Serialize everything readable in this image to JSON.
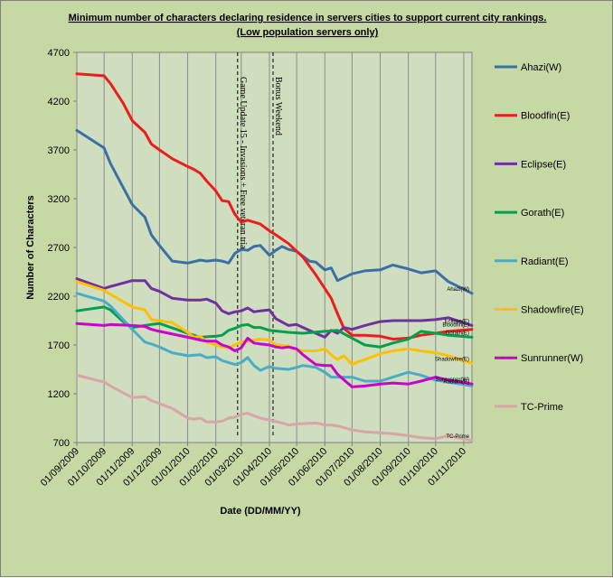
{
  "chart_data": {
    "type": "line",
    "title_line1": "Minimum number of characters  declaring  residence  in servers cities to support current city rankings.",
    "title_line2": "(Low population  servers only)",
    "xlabel": "Date (DD/MM/YY)",
    "ylabel": "Number of Characters",
    "ylim": [
      700,
      4700
    ],
    "yticks": [
      700,
      1200,
      1700,
      2200,
      2700,
      3200,
      3700,
      4200,
      4700
    ],
    "xlim": [
      "2009-09-01",
      "2010-11-10"
    ],
    "xticks": [
      "01/09/2009",
      "01/10/2009",
      "01/11/2009",
      "01/12/2009",
      "01/01/2010",
      "01/02/2010",
      "01/03/2010",
      "01/04/2010",
      "01/05/2010",
      "01/06/2010",
      "01/07/2010",
      "01/08/2010",
      "01/09/2010",
      "01/10/2010",
      "01/11/2010"
    ],
    "grid": "vertical",
    "legend": "right",
    "annotations": [
      {
        "text": "Game Update 15 - Invasions + Free veteran trial",
        "date": "2010-02-25"
      },
      {
        "text": "Bonus Weekend",
        "date": "2010-04-05"
      }
    ],
    "series": [
      {
        "name": "Ahazi(W)",
        "end_label": "Ahazi(W)",
        "color": "#3d6fa7",
        "x": [
          "2009-09-01",
          "2009-10-01",
          "2009-10-08",
          "2009-11-01",
          "2009-11-15",
          "2009-11-22",
          "2009-12-01",
          "2009-12-15",
          "2010-01-01",
          "2010-01-15",
          "2010-01-22",
          "2010-02-01",
          "2010-02-08",
          "2010-02-15",
          "2010-02-22",
          "2010-03-01",
          "2010-03-08",
          "2010-03-15",
          "2010-03-22",
          "2010-04-01",
          "2010-04-08",
          "2010-04-15",
          "2010-04-22",
          "2010-05-01",
          "2010-05-08",
          "2010-05-15",
          "2010-05-22",
          "2010-06-01",
          "2010-06-08",
          "2010-06-15",
          "2010-07-01",
          "2010-07-15",
          "2010-08-01",
          "2010-08-15",
          "2010-09-01",
          "2010-09-15",
          "2010-10-01",
          "2010-10-15",
          "2010-11-10"
        ],
        "y": [
          3900,
          3720,
          3560,
          3140,
          3010,
          2830,
          2720,
          2560,
          2540,
          2570,
          2560,
          2570,
          2560,
          2540,
          2640,
          2680,
          2670,
          2710,
          2720,
          2620,
          2670,
          2710,
          2680,
          2660,
          2610,
          2560,
          2550,
          2470,
          2490,
          2360,
          2430,
          2460,
          2470,
          2520,
          2480,
          2440,
          2460,
          2350,
          2230
        ]
      },
      {
        "name": "Bloodfin(E)",
        "end_label": "Bloodfin(E)",
        "color": "#ee1c1c",
        "x": [
          "2009-09-01",
          "2009-10-01",
          "2009-10-08",
          "2009-10-22",
          "2009-11-01",
          "2009-11-15",
          "2009-11-22",
          "2009-12-01",
          "2009-12-15",
          "2010-01-01",
          "2010-01-08",
          "2010-01-15",
          "2010-01-22",
          "2010-02-01",
          "2010-02-08",
          "2010-02-15",
          "2010-02-22",
          "2010-03-01",
          "2010-03-08",
          "2010-03-22",
          "2010-04-01",
          "2010-04-08",
          "2010-04-22",
          "2010-05-08",
          "2010-05-22",
          "2010-06-08",
          "2010-06-15",
          "2010-06-22",
          "2010-07-01",
          "2010-07-08",
          "2010-07-15",
          "2010-08-01",
          "2010-08-15",
          "2010-09-01",
          "2010-09-15",
          "2010-10-01",
          "2010-10-15",
          "2010-11-10"
        ],
        "y": [
          4480,
          4460,
          4380,
          4180,
          4000,
          3880,
          3760,
          3700,
          3610,
          3530,
          3500,
          3460,
          3380,
          3280,
          3180,
          3170,
          3040,
          2960,
          2980,
          2940,
          2870,
          2830,
          2740,
          2600,
          2420,
          2180,
          2020,
          1870,
          1800,
          1800,
          1800,
          1790,
          1760,
          1770,
          1800,
          1820,
          1840,
          1860
        ]
      },
      {
        "name": "Eclipse(E)",
        "end_label": "Eclipse(E)",
        "color": "#7030a0",
        "x": [
          "2009-09-01",
          "2009-10-01",
          "2009-10-08",
          "2009-11-01",
          "2009-11-15",
          "2009-11-22",
          "2009-12-01",
          "2009-12-15",
          "2010-01-01",
          "2010-01-15",
          "2010-01-22",
          "2010-02-01",
          "2010-02-08",
          "2010-02-15",
          "2010-02-22",
          "2010-03-01",
          "2010-03-08",
          "2010-03-15",
          "2010-03-22",
          "2010-04-01",
          "2010-04-08",
          "2010-04-22",
          "2010-05-01",
          "2010-05-08",
          "2010-05-22",
          "2010-06-01",
          "2010-06-08",
          "2010-06-15",
          "2010-06-22",
          "2010-07-01",
          "2010-07-15",
          "2010-08-01",
          "2010-08-15",
          "2010-09-01",
          "2010-09-15",
          "2010-10-01",
          "2010-10-15",
          "2010-11-10"
        ],
        "y": [
          2380,
          2280,
          2300,
          2360,
          2360,
          2280,
          2250,
          2180,
          2160,
          2160,
          2170,
          2130,
          2050,
          2020,
          2040,
          2050,
          2080,
          2040,
          2050,
          2060,
          1970,
          1900,
          1910,
          1880,
          1820,
          1780,
          1850,
          1820,
          1880,
          1860,
          1900,
          1940,
          1950,
          1950,
          1950,
          1960,
          1980,
          1900
        ]
      },
      {
        "name": "Gorath(E)",
        "end_label": "Gorath(E)",
        "color": "#00a14b",
        "x": [
          "2009-09-01",
          "2009-10-01",
          "2009-10-08",
          "2009-10-22",
          "2009-11-01",
          "2009-11-15",
          "2009-11-22",
          "2009-12-01",
          "2010-01-01",
          "2010-01-15",
          "2010-02-01",
          "2010-02-08",
          "2010-02-15",
          "2010-02-22",
          "2010-03-01",
          "2010-03-08",
          "2010-03-15",
          "2010-03-22",
          "2010-04-01",
          "2010-04-22",
          "2010-05-08",
          "2010-06-01",
          "2010-06-15",
          "2010-07-01",
          "2010-07-15",
          "2010-08-01",
          "2010-08-15",
          "2010-09-01",
          "2010-09-15",
          "2010-10-01",
          "2010-10-15",
          "2010-11-10"
        ],
        "y": [
          2050,
          2090,
          2060,
          1940,
          1880,
          1900,
          1910,
          1920,
          1820,
          1780,
          1790,
          1800,
          1850,
          1870,
          1900,
          1910,
          1880,
          1880,
          1850,
          1830,
          1820,
          1840,
          1850,
          1770,
          1700,
          1680,
          1720,
          1760,
          1840,
          1820,
          1800,
          1780
        ]
      },
      {
        "name": "Radiant(E)",
        "end_label": "Radiant(E)",
        "color": "#4bacc6",
        "x": [
          "2009-09-01",
          "2009-10-01",
          "2009-10-08",
          "2009-11-01",
          "2009-11-15",
          "2009-11-22",
          "2009-12-01",
          "2009-12-15",
          "2010-01-01",
          "2010-01-15",
          "2010-01-22",
          "2010-02-01",
          "2010-02-08",
          "2010-02-15",
          "2010-02-22",
          "2010-03-01",
          "2010-03-08",
          "2010-03-15",
          "2010-03-22",
          "2010-04-01",
          "2010-04-08",
          "2010-04-22",
          "2010-05-01",
          "2010-05-08",
          "2010-05-22",
          "2010-06-01",
          "2010-06-08",
          "2010-06-15",
          "2010-07-01",
          "2010-07-15",
          "2010-08-01",
          "2010-08-15",
          "2010-09-01",
          "2010-09-15",
          "2010-10-01",
          "2010-10-15",
          "2010-11-10"
        ],
        "y": [
          2230,
          2150,
          2100,
          1860,
          1730,
          1710,
          1680,
          1620,
          1590,
          1600,
          1570,
          1580,
          1540,
          1520,
          1500,
          1520,
          1570,
          1490,
          1440,
          1480,
          1460,
          1450,
          1470,
          1490,
          1470,
          1420,
          1370,
          1370,
          1370,
          1330,
          1330,
          1370,
          1420,
          1390,
          1340,
          1320,
          1280
        ]
      },
      {
        "name": "Shadowfire(E)",
        "end_label": "Shadowfire(E)",
        "color": "#ffc000",
        "x": [
          "2009-09-01",
          "2009-10-01",
          "2009-10-08",
          "2009-11-01",
          "2009-11-15",
          "2009-11-22",
          "2009-12-01",
          "2009-12-15",
          "2010-01-01",
          "2010-01-08",
          "2010-01-15",
          "2010-01-22",
          "2010-02-01",
          "2010-02-08",
          "2010-02-15",
          "2010-02-22",
          "2010-03-01",
          "2010-03-08",
          "2010-03-15",
          "2010-03-22",
          "2010-04-01",
          "2010-04-08",
          "2010-04-22",
          "2010-05-01",
          "2010-05-08",
          "2010-05-22",
          "2010-06-01",
          "2010-06-08",
          "2010-06-15",
          "2010-06-22",
          "2010-07-01",
          "2010-07-08",
          "2010-07-15",
          "2010-08-01",
          "2010-08-15",
          "2010-09-01",
          "2010-09-15",
          "2010-10-01",
          "2010-10-15",
          "2010-11-10"
        ],
        "y": [
          2350,
          2260,
          2220,
          2090,
          2060,
          1960,
          1950,
          1930,
          1830,
          1780,
          1790,
          1730,
          1700,
          1680,
          1670,
          1700,
          1730,
          1740,
          1750,
          1760,
          1750,
          1700,
          1690,
          1650,
          1640,
          1640,
          1660,
          1600,
          1550,
          1590,
          1500,
          1530,
          1550,
          1610,
          1640,
          1660,
          1640,
          1620,
          1590,
          1510
        ]
      },
      {
        "name": "Sunrunner(W)",
        "end_label": "Sunrunner(W)",
        "color": "#cc00cc",
        "x": [
          "2009-09-01",
          "2009-10-01",
          "2009-10-08",
          "2009-11-01",
          "2009-11-15",
          "2009-11-22",
          "2009-12-01",
          "2010-01-01",
          "2010-01-15",
          "2010-01-22",
          "2010-02-01",
          "2010-02-08",
          "2010-02-15",
          "2010-02-22",
          "2010-03-01",
          "2010-03-08",
          "2010-03-15",
          "2010-03-22",
          "2010-04-01",
          "2010-04-08",
          "2010-04-15",
          "2010-04-22",
          "2010-05-01",
          "2010-05-08",
          "2010-05-22",
          "2010-06-01",
          "2010-06-08",
          "2010-06-15",
          "2010-07-01",
          "2010-07-15",
          "2010-08-01",
          "2010-08-15",
          "2010-09-01",
          "2010-09-15",
          "2010-10-01",
          "2010-10-15",
          "2010-11-10"
        ],
        "y": [
          1920,
          1900,
          1910,
          1900,
          1890,
          1860,
          1840,
          1780,
          1750,
          1740,
          1740,
          1700,
          1680,
          1640,
          1670,
          1770,
          1720,
          1710,
          1700,
          1680,
          1670,
          1680,
          1660,
          1600,
          1500,
          1490,
          1490,
          1400,
          1270,
          1280,
          1300,
          1310,
          1300,
          1330,
          1370,
          1340,
          1300
        ]
      },
      {
        "name": "TC-Prime",
        "end_label": "TC-Prime",
        "color": "#d9a5a5",
        "x": [
          "2009-09-01",
          "2009-10-01",
          "2009-10-08",
          "2009-11-01",
          "2009-11-15",
          "2009-11-22",
          "2009-12-01",
          "2009-12-15",
          "2010-01-01",
          "2010-01-08",
          "2010-01-15",
          "2010-01-22",
          "2010-02-01",
          "2010-02-08",
          "2010-02-15",
          "2010-02-22",
          "2010-03-01",
          "2010-03-08",
          "2010-03-22",
          "2010-04-01",
          "2010-04-15",
          "2010-04-22",
          "2010-05-01",
          "2010-05-22",
          "2010-06-01",
          "2010-06-08",
          "2010-06-15",
          "2010-07-01",
          "2010-07-15",
          "2010-08-01",
          "2010-08-15",
          "2010-09-01",
          "2010-09-15",
          "2010-10-01",
          "2010-10-15",
          "2010-11-10"
        ],
        "y": [
          1390,
          1320,
          1280,
          1160,
          1170,
          1130,
          1100,
          1050,
          950,
          940,
          950,
          910,
          910,
          920,
          950,
          960,
          990,
          1000,
          950,
          930,
          900,
          880,
          890,
          900,
          880,
          880,
          870,
          830,
          810,
          800,
          790,
          770,
          750,
          740,
          770,
          720
        ]
      }
    ]
  }
}
